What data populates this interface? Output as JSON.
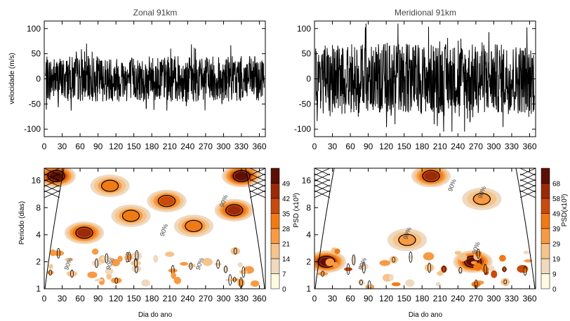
{
  "figure": {
    "shared_xlabel": "Dia do ano"
  },
  "chart_data": [
    {
      "type": "line",
      "id": "zonal-timeseries",
      "title": "Zonal  91km",
      "ylabel": "velocidade (m/s)",
      "xlabel": "",
      "xlim": [
        0,
        370
      ],
      "ylim": [
        -115,
        115
      ],
      "xticks": [
        "0",
        "30",
        "60",
        "90",
        "120",
        "150",
        "180",
        "210",
        "240",
        "270",
        "300",
        "330",
        "360"
      ],
      "yticks": [
        "-100",
        "-50",
        "0",
        "50",
        "100"
      ],
      "series_color": "#000000",
      "series": [
        {
          "name": "",
          "amplitude_mps": 45,
          "min_mps": -95,
          "max_mps": 75
        }
      ]
    },
    {
      "type": "line",
      "id": "meridional-timeseries",
      "title": "Meridional  91km",
      "ylabel": "",
      "xlabel": "",
      "xlim": [
        0,
        370
      ],
      "ylim": [
        -115,
        115
      ],
      "xticks": [
        "0",
        "30",
        "60",
        "90",
        "120",
        "150",
        "180",
        "210",
        "240",
        "270",
        "300",
        "330",
        "360"
      ],
      "yticks": [
        "-100",
        "-50",
        "0",
        "50",
        "100"
      ],
      "series_color": "#000000",
      "series": [
        {
          "name": "",
          "amplitude_mps": 70,
          "min_mps": -105,
          "max_mps": 110
        }
      ]
    },
    {
      "type": "heatmap",
      "id": "zonal-wavelet",
      "ylabel": "Periodo (dias)",
      "xlabel": "Dia do ano",
      "xlim": [
        0,
        370
      ],
      "ylim_days": [
        1,
        22
      ],
      "yscale": "log",
      "xticks": [
        "0",
        "30",
        "60",
        "90",
        "120",
        "150",
        "180",
        "210",
        "240",
        "270",
        "300",
        "330",
        "360"
      ],
      "yticks": [
        "1",
        "2",
        "4",
        "8",
        "16"
      ],
      "colorbar": {
        "label": "PSD (x10³)",
        "ticks": [
          "0",
          "7",
          "14",
          "21",
          "28",
          "35",
          "42",
          "49"
        ],
        "colors": [
          "#fffbe3",
          "#efd9bf",
          "#f5c48c",
          "#f79a43",
          "#f07a14",
          "#c84a0c",
          "#9a2a08",
          "#5c0f05"
        ]
      },
      "contour_label": "90%",
      "hotspots": [
        {
          "day": 20,
          "period": 18,
          "level": 7
        },
        {
          "day": 330,
          "period": 18,
          "level": 7
        },
        {
          "day": 318,
          "period": 7.5,
          "level": 6
        },
        {
          "day": 67,
          "period": 4.2,
          "level": 6
        },
        {
          "day": 205,
          "period": 9.5,
          "level": 5
        },
        {
          "day": 110,
          "period": 14,
          "level": 4
        },
        {
          "day": 145,
          "period": 6.5,
          "level": 4
        },
        {
          "day": 250,
          "period": 5,
          "level": 4
        }
      ]
    },
    {
      "type": "heatmap",
      "id": "meridional-wavelet",
      "ylabel": "",
      "xlabel": "Dia do ano",
      "xlim": [
        0,
        370
      ],
      "ylim_days": [
        1,
        22
      ],
      "yscale": "log",
      "xticks": [
        "0",
        "30",
        "60",
        "90",
        "120",
        "150",
        "180",
        "210",
        "240",
        "270",
        "300",
        "330",
        "360"
      ],
      "yticks": [
        "1",
        "2",
        "4",
        "8",
        "16"
      ],
      "colorbar": {
        "label": "PSD(x10³)",
        "ticks": [
          "0",
          "9",
          "19",
          "29",
          "39",
          "49",
          "58",
          "68"
        ],
        "colors": [
          "#fffbe3",
          "#efd9bf",
          "#f5c48c",
          "#f79a43",
          "#f07a14",
          "#c84a0c",
          "#9a2a08",
          "#5c0f05"
        ]
      },
      "contour_label": "90%",
      "hotspots": [
        {
          "day": 195,
          "period": 18,
          "level": 6
        },
        {
          "day": 280,
          "period": 10,
          "level": 3
        },
        {
          "day": 20,
          "period": 2,
          "level": 7
        },
        {
          "day": 265,
          "period": 2,
          "level": 7
        },
        {
          "day": 155,
          "period": 3.5,
          "level": 3
        }
      ]
    }
  ]
}
